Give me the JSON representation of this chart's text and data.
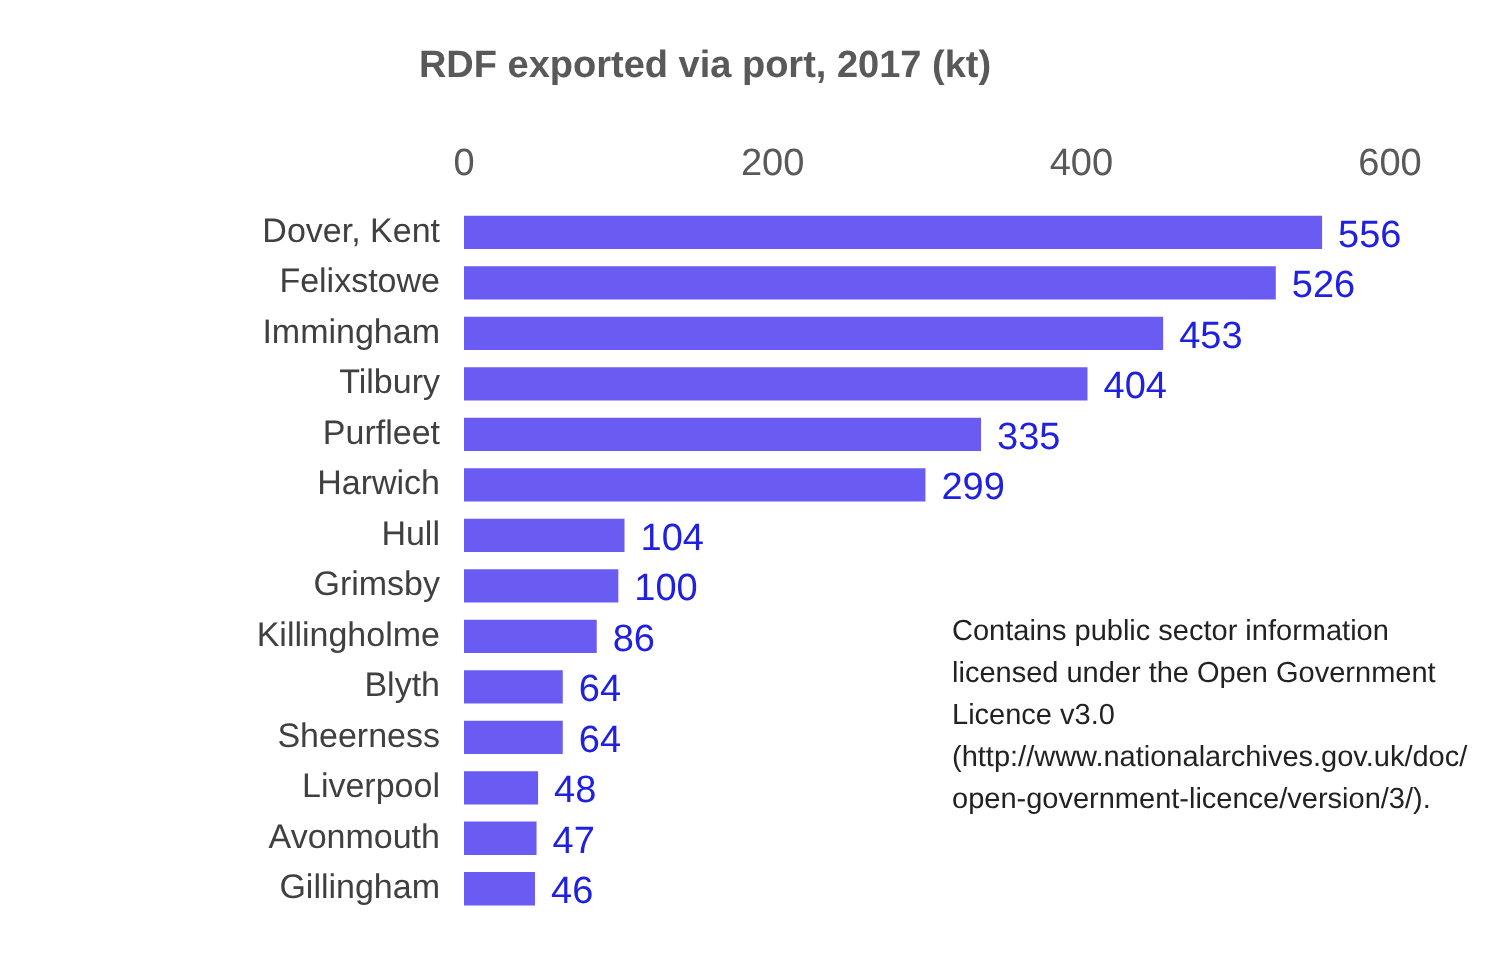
{
  "chart_data": {
    "type": "bar",
    "orientation": "horizontal",
    "title": "RDF exported via port, 2017 (kt)",
    "categories": [
      "Dover, Kent",
      "Felixstowe",
      "Immingham",
      "Tilbury",
      "Purfleet",
      "Harwich",
      "Hull",
      "Grimsby",
      "Killingholme",
      "Blyth",
      "Sheerness",
      "Liverpool",
      "Avonmouth",
      "Gillingham"
    ],
    "values": [
      556,
      526,
      453,
      404,
      335,
      299,
      104,
      100,
      86,
      64,
      64,
      48,
      47,
      46
    ],
    "color": "#6a5cf2",
    "xlim": [
      0,
      600
    ],
    "xticks": [
      0,
      200,
      400,
      600
    ],
    "data_labels": true,
    "grid": false,
    "legend": false,
    "annotations": [
      "Contains public sector information licensed under the Open Government Licence v3.0 (http://www.nationalarchives.gov.uk/doc/open-government-licence/version/3/)."
    ]
  }
}
